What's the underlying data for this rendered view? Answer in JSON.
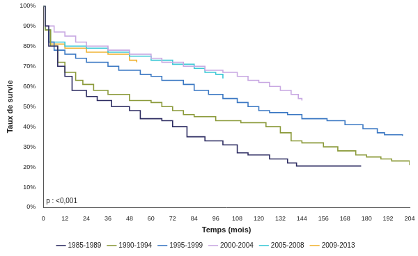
{
  "chart_data": {
    "type": "line",
    "line_style": "step",
    "x_label": "Temps (mois)",
    "y_label": "Taux de survie",
    "annotation": "p : <0,001",
    "xlim": [
      0,
      204
    ],
    "xticks": [
      0,
      12,
      24,
      36,
      48,
      60,
      72,
      84,
      96,
      108,
      120,
      132,
      144,
      156,
      168,
      180,
      192,
      204
    ],
    "ylim": [
      0,
      100
    ],
    "yticks": [
      {
        "value": 0,
        "label": "0%"
      },
      {
        "value": 10,
        "label": "10%"
      },
      {
        "value": 20,
        "label": "20%"
      },
      {
        "value": 30,
        "label": "30%"
      },
      {
        "value": 40,
        "label": "40%"
      },
      {
        "value": 50,
        "label": "50%"
      },
      {
        "value": 60,
        "label": "60%"
      },
      {
        "value": 70,
        "label": "70%"
      },
      {
        "value": 80,
        "label": "80%"
      },
      {
        "value": 90,
        "label": "90%"
      },
      {
        "value": 100,
        "label": "100%"
      }
    ],
    "grid": false,
    "legend": "bottom",
    "series": [
      {
        "name": "1985-1989",
        "color": "#2e2d62",
        "x": [
          0,
          1,
          3,
          8,
          12,
          16,
          24,
          30,
          38,
          48,
          54,
          66,
          72,
          80,
          90,
          100,
          108,
          114,
          126,
          136,
          141,
          177
        ],
        "values": [
          100,
          90,
          80,
          70,
          65,
          58,
          55,
          53,
          50,
          48,
          44,
          43,
          40,
          35,
          33,
          31,
          27,
          26,
          24,
          22,
          20.5,
          20.5
        ]
      },
      {
        "name": "1990-1994",
        "color": "#8b9a3a",
        "x": [
          0,
          1,
          4,
          8,
          12,
          18,
          22,
          28,
          36,
          48,
          60,
          66,
          72,
          78,
          84,
          96,
          110,
          124,
          132,
          138,
          144,
          156,
          164,
          174,
          180,
          188,
          194,
          204
        ],
        "values": [
          100,
          88,
          80,
          72,
          67,
          63,
          61,
          58,
          56,
          53,
          52,
          50,
          48,
          46,
          45,
          43,
          42,
          40,
          37,
          33,
          32,
          30,
          28,
          26,
          25,
          24,
          23,
          21
        ]
      },
      {
        "name": "1995-1999",
        "color": "#3b78c3",
        "x": [
          0,
          1,
          3,
          6,
          12,
          18,
          24,
          36,
          42,
          54,
          60,
          66,
          78,
          84,
          92,
          100,
          108,
          114,
          120,
          126,
          136,
          144,
          158,
          168,
          178,
          186,
          190,
          200
        ],
        "values": [
          100,
          88,
          82,
          78,
          76,
          74,
          72,
          70,
          68,
          66,
          65,
          63,
          61,
          58,
          56,
          54,
          52,
          50,
          48,
          47,
          46,
          44,
          43,
          41,
          39,
          37,
          36,
          35.5
        ]
      },
      {
        "name": "2000-2004",
        "color": "#c8a8e2",
        "x": [
          0,
          1,
          6,
          12,
          18,
          24,
          36,
          48,
          60,
          66,
          78,
          90,
          100,
          108,
          114,
          120,
          126,
          132,
          138,
          142,
          144
        ],
        "values": [
          100,
          90,
          87,
          85,
          82,
          80,
          78,
          76,
          74,
          72,
          70,
          68,
          67,
          65,
          63,
          62,
          60,
          58,
          56,
          54,
          53
        ]
      },
      {
        "name": "2005-2008",
        "color": "#3cc8d6",
        "x": [
          0,
          1,
          4,
          12,
          24,
          36,
          48,
          60,
          72,
          84,
          90,
          96,
          100
        ],
        "values": [
          100,
          88,
          82,
          80,
          79,
          77,
          75,
          73,
          71,
          69,
          67,
          66,
          64
        ]
      },
      {
        "name": "2009-2013",
        "color": "#f0b434",
        "x": [
          0,
          1,
          4,
          12,
          24,
          36,
          48,
          52
        ],
        "values": [
          100,
          88,
          81,
          79,
          77,
          76,
          73,
          72
        ]
      }
    ]
  }
}
